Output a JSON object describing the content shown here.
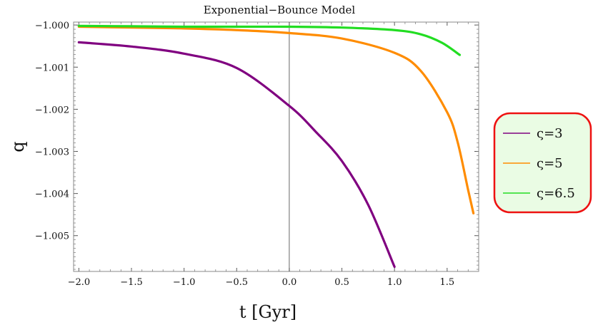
{
  "chart_data": {
    "type": "line",
    "title": "Exponential−Bounce Model",
    "xlabel": "t [Gyr]",
    "ylabel": "q",
    "xlim": [
      -2.05,
      1.8
    ],
    "ylim": [
      -1.00585,
      -0.99993
    ],
    "x_ticks": [
      -2.0,
      -1.5,
      -1.0,
      -0.5,
      0.0,
      0.5,
      1.0,
      1.5
    ],
    "x_tick_labels": [
      "−2.0",
      "−1.5",
      "−1.0",
      "−0.5",
      "0.0",
      "0.5",
      "1.0",
      "1.5"
    ],
    "y_ticks": [
      -1.0,
      -1.001,
      -1.002,
      -1.003,
      -1.004,
      -1.005
    ],
    "y_tick_labels": [
      "−1.000",
      "−1.001",
      "−1.002",
      "−1.003",
      "−1.004",
      "−1.005"
    ],
    "grid": false,
    "vertical_line_x": 0.0,
    "legend_position": "right",
    "series": [
      {
        "name": "ς=3",
        "color": "#800080",
        "points": [
          [
            -2.0,
            -1.00041
          ],
          [
            -1.5,
            -1.00051
          ],
          [
            -1.0,
            -1.00068
          ],
          [
            -0.5,
            -1.00102
          ],
          [
            0.0,
            -1.00192
          ],
          [
            0.25,
            -1.00253
          ],
          [
            0.5,
            -1.00323
          ],
          [
            0.75,
            -1.00427
          ],
          [
            1.0,
            -1.00574
          ]
        ]
      },
      {
        "name": "ς=5",
        "color": "#ff8c00",
        "points": [
          [
            -2.0,
            -1.00004
          ],
          [
            -1.5,
            -1.00006
          ],
          [
            -1.0,
            -1.00008
          ],
          [
            -0.5,
            -1.00012
          ],
          [
            0.0,
            -1.00019
          ],
          [
            0.5,
            -1.00032
          ],
          [
            1.0,
            -1.00066
          ],
          [
            1.25,
            -1.00109
          ],
          [
            1.5,
            -1.00207
          ],
          [
            1.6,
            -1.00278
          ],
          [
            1.7,
            -1.00392
          ],
          [
            1.75,
            -1.00447
          ]
        ]
      },
      {
        "name": "ς=6.5",
        "color": "#22dd22",
        "points": [
          [
            -2.0,
            -1.00002
          ],
          [
            -1.5,
            -1.00003
          ],
          [
            -1.0,
            -1.00004
          ],
          [
            -0.5,
            -1.00004
          ],
          [
            0.0,
            -1.00004
          ],
          [
            0.5,
            -1.00006
          ],
          [
            1.0,
            -1.00012
          ],
          [
            1.25,
            -1.00022
          ],
          [
            1.45,
            -1.00042
          ],
          [
            1.62,
            -1.00071
          ]
        ]
      }
    ]
  }
}
